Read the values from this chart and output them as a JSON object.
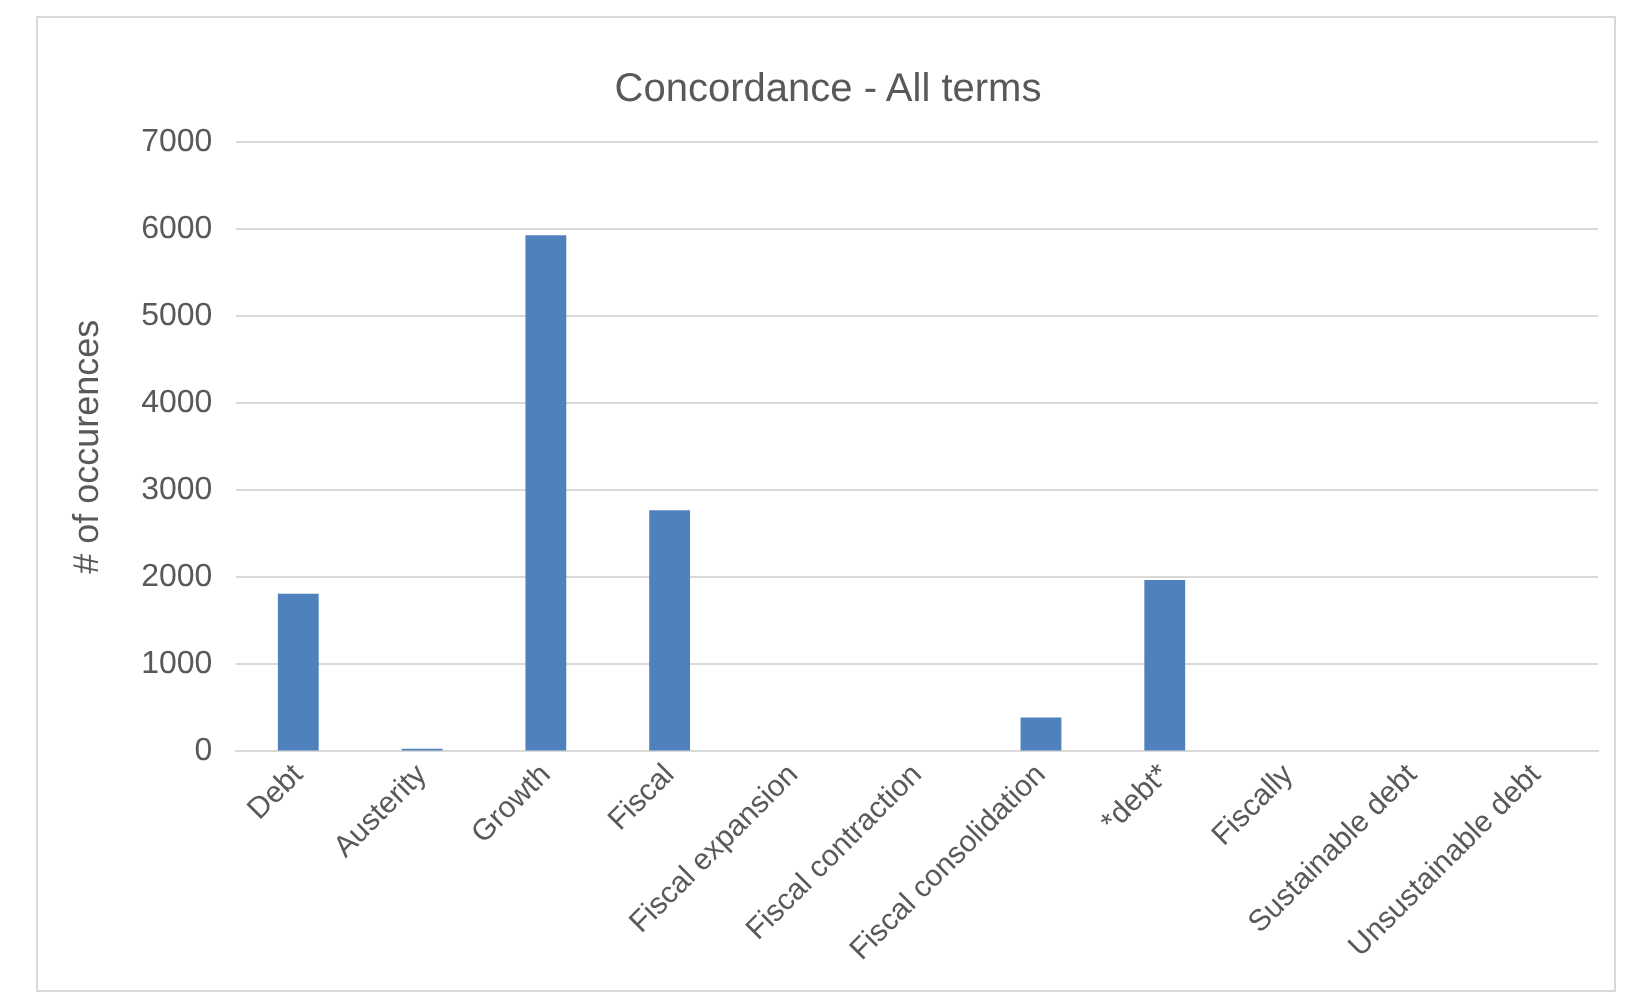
{
  "chart_data": {
    "type": "bar",
    "title": "Concordance - All terms",
    "ylabel": "# of occurences",
    "categories": [
      "Debt",
      "Austerity",
      "Growth",
      "Fiscal",
      "Fiscal expansion",
      "Fiscal contraction",
      "Fiscal consolidation",
      "*debt*",
      "Fiscally",
      "Sustainable debt",
      "Unsustainable debt"
    ],
    "values": [
      1810,
      30,
      5930,
      2770,
      0,
      0,
      390,
      1970,
      0,
      0,
      0
    ],
    "color": "#4f81bd",
    "ylim": [
      0,
      7000
    ],
    "yticks": [
      0,
      1000,
      2000,
      3000,
      4000,
      5000,
      6000,
      7000
    ],
    "grid": "y",
    "legend": false
  }
}
